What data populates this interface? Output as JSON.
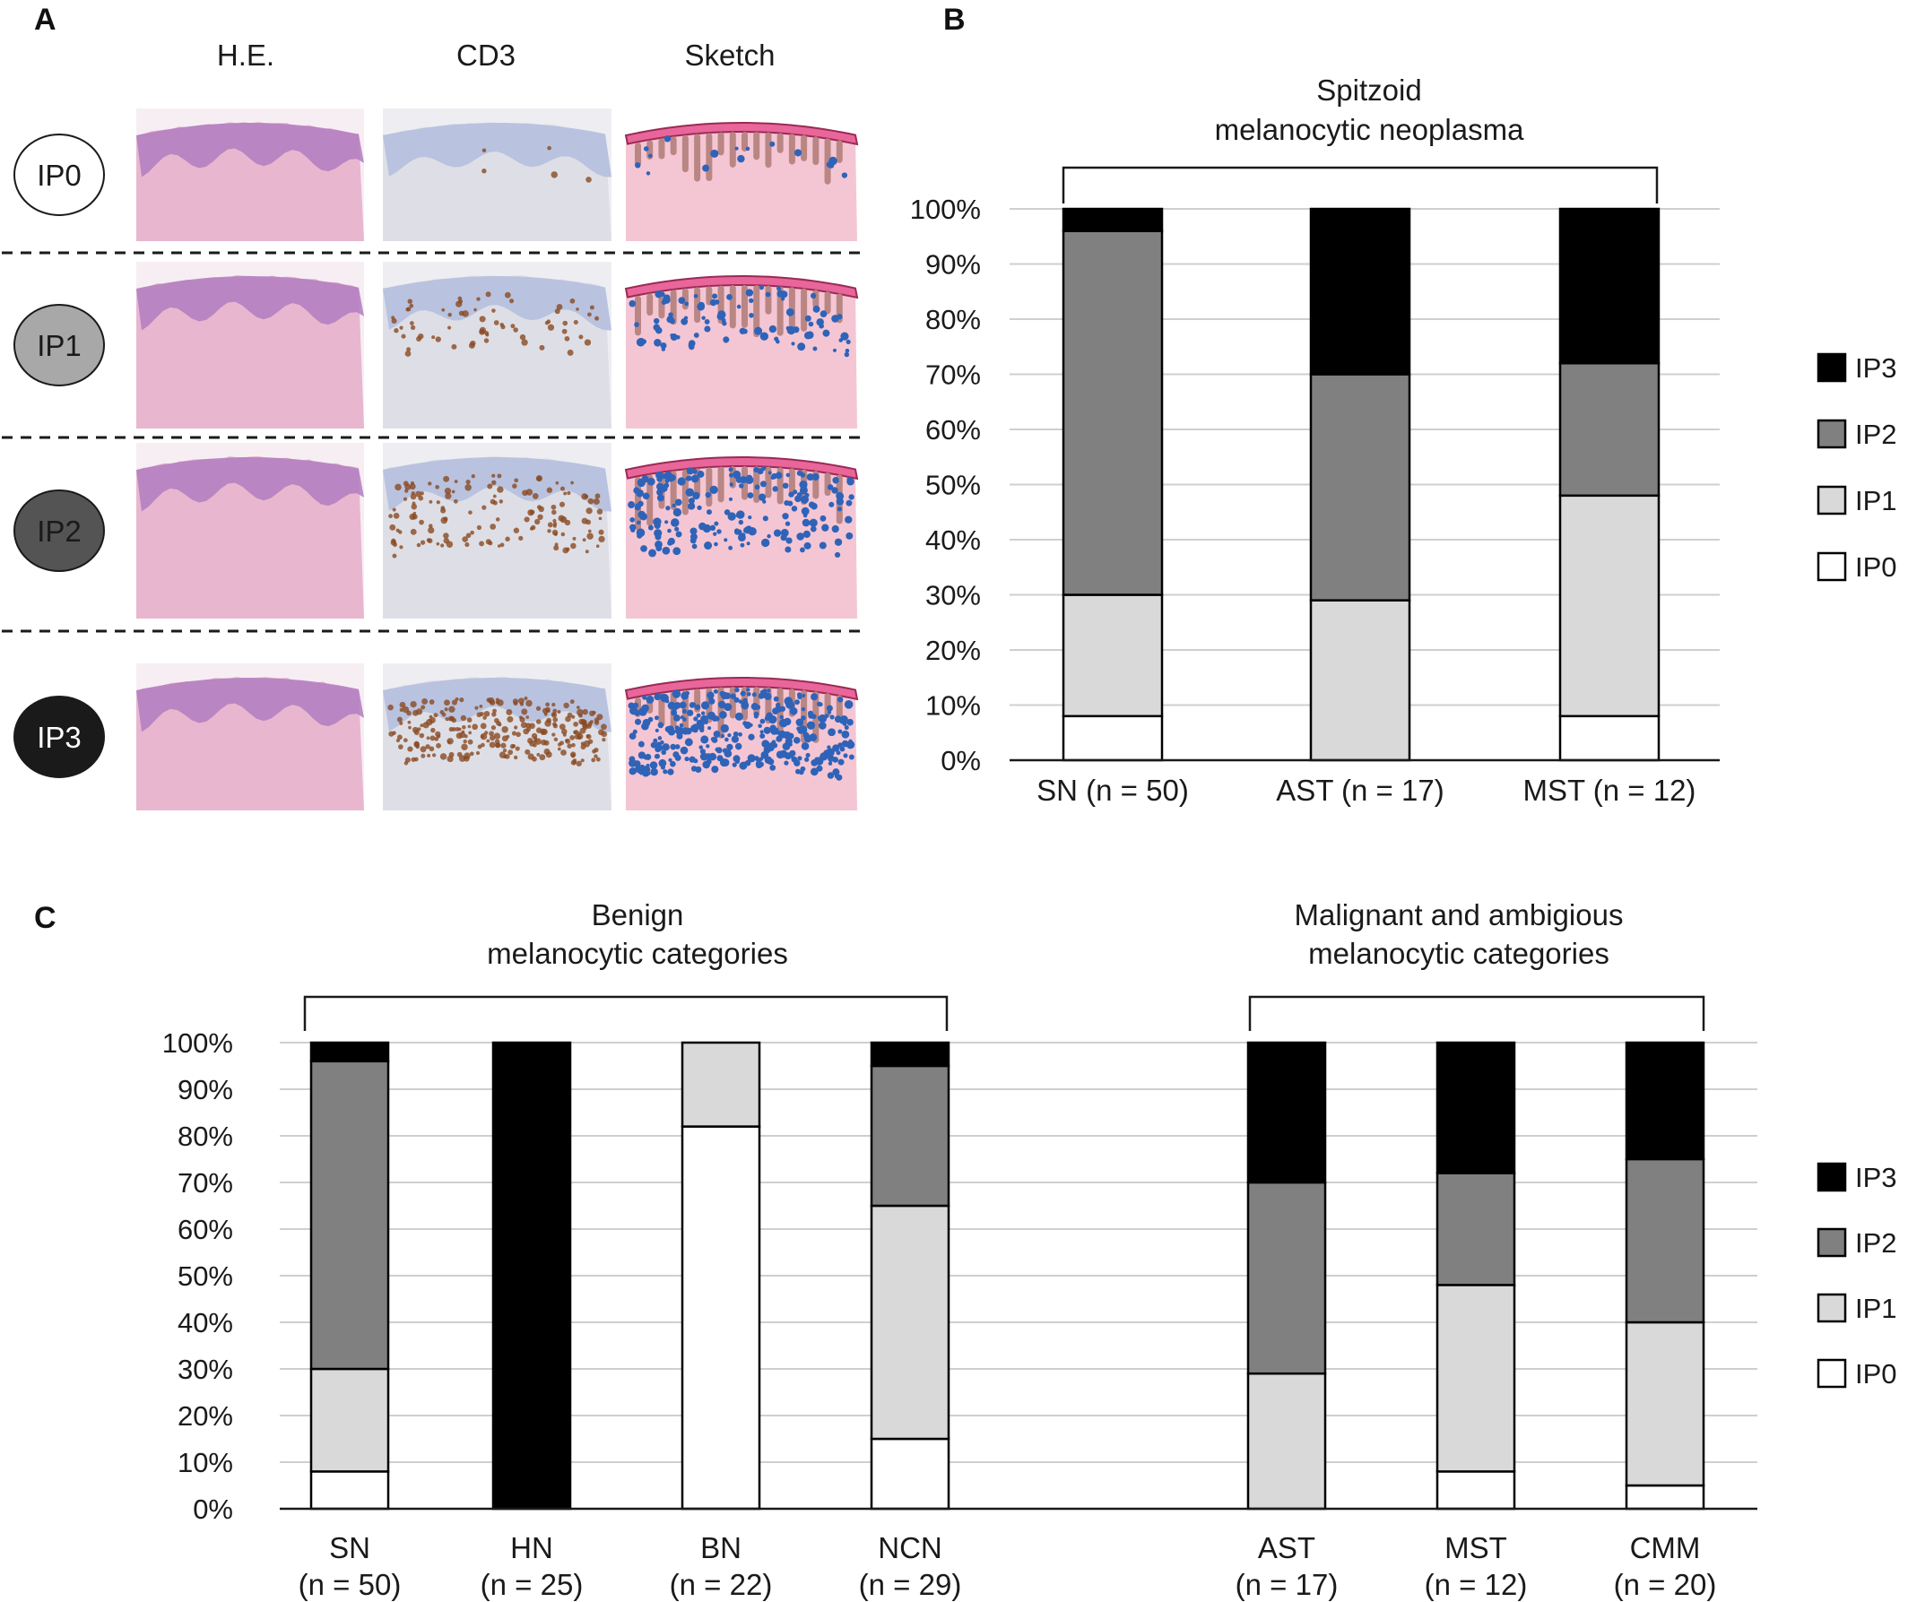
{
  "panels": {
    "a": "A",
    "b": "B",
    "c": "C"
  },
  "panel_a": {
    "columns": [
      "H.E.",
      "CD3",
      "Sketch"
    ],
    "rows": [
      {
        "label": "IP0",
        "fill": "#ffffff",
        "text_color": "#1a1a1a"
      },
      {
        "label": "IP1",
        "fill": "#a8a8a8",
        "text_color": "#1a1a1a"
      },
      {
        "label": "IP2",
        "fill": "#545454",
        "text_color": "#1a1a1a"
      },
      {
        "label": "IP3",
        "fill": "#1a1a1a",
        "text_color": "#ffffff"
      }
    ]
  },
  "colors": {
    "IP0": "#ffffff",
    "IP1": "#d9d9d9",
    "IP2": "#808080",
    "IP3": "#000000",
    "he_pink": "#e8b7cf",
    "he_purple": "#b07cc0",
    "cd3_blue": "#b9c3e0",
    "cd3_brown": "#8a4a22",
    "sketch_pink": "#f4c6d4",
    "sketch_epi": "#e9669a",
    "sketch_brown": "#b98683",
    "sketch_blue": "#2f63b8"
  },
  "chart_data": [
    {
      "type": "bar",
      "stacked": true,
      "title": [
        "Spitzoid",
        "melanocytic neoplasma"
      ],
      "y_ticks": [
        "0%",
        "10%",
        "20%",
        "30%",
        "40%",
        "50%",
        "60%",
        "70%",
        "80%",
        "90%",
        "100%"
      ],
      "ylim": [
        0,
        100
      ],
      "categories": [
        "SN (n = 50)",
        "AST (n = 17)",
        "MST (n = 12)"
      ],
      "series": [
        {
          "name": "IP0",
          "values": [
            8,
            0,
            8
          ]
        },
        {
          "name": "IP1",
          "values": [
            22,
            29,
            40
          ]
        },
        {
          "name": "IP2",
          "values": [
            66,
            41,
            24
          ]
        },
        {
          "name": "IP3",
          "values": [
            4,
            30,
            28
          ]
        }
      ],
      "legend": [
        "IP3",
        "IP2",
        "IP1",
        "IP0"
      ],
      "legend_position": "right",
      "grid": true
    },
    {
      "type": "bar",
      "stacked": true,
      "group_titles": [
        [
          "Benign",
          "melanocytic categories"
        ],
        [
          "Malignant and ambigious",
          "melanocytic categories"
        ]
      ],
      "y_ticks": [
        "0%",
        "10%",
        "20%",
        "30%",
        "40%",
        "50%",
        "60%",
        "70%",
        "80%",
        "90%",
        "100%"
      ],
      "ylim": [
        0,
        100
      ],
      "categories": [
        [
          "SN",
          "(n = 50)"
        ],
        [
          "HN",
          "(n = 25)"
        ],
        [
          "BN",
          "(n = 22)"
        ],
        [
          "NCN",
          "(n = 29)"
        ],
        [
          "AST",
          "(n = 17)"
        ],
        [
          "MST",
          "(n = 12)"
        ],
        [
          "CMM",
          "(n = 20)"
        ]
      ],
      "series": [
        {
          "name": "IP0",
          "values": [
            8,
            0,
            82,
            15,
            0,
            8,
            5
          ]
        },
        {
          "name": "IP1",
          "values": [
            22,
            0,
            18,
            50,
            29,
            40,
            35
          ]
        },
        {
          "name": "IP2",
          "values": [
            66,
            0,
            0,
            30,
            41,
            24,
            35
          ]
        },
        {
          "name": "IP3",
          "values": [
            4,
            100,
            0,
            5,
            30,
            28,
            25
          ]
        }
      ],
      "legend": [
        "IP3",
        "IP2",
        "IP1",
        "IP0"
      ],
      "legend_position": "right",
      "grid": true
    }
  ]
}
